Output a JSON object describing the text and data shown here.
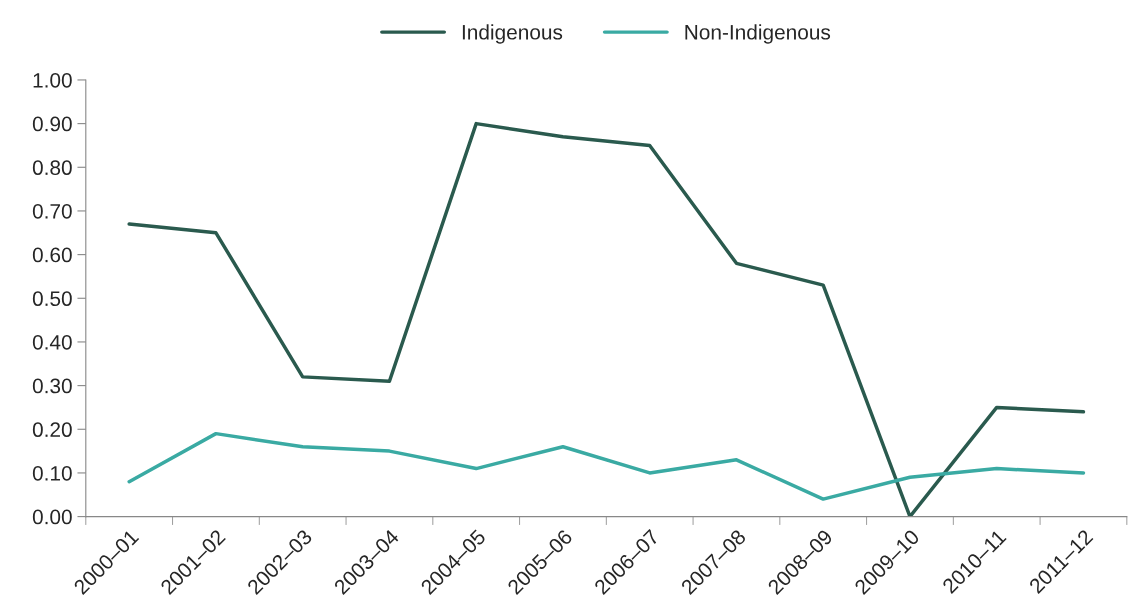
{
  "chart_data": {
    "type": "line",
    "categories": [
      "2000–01",
      "2001–02",
      "2002–03",
      "2003–04",
      "2004–05",
      "2005–06",
      "2006–07",
      "2007–08",
      "2008–09",
      "2009–10",
      "2010–11",
      "2011–12"
    ],
    "series": [
      {
        "name": "Indigenous",
        "color": "#2a5a4e",
        "values": [
          0.67,
          0.65,
          0.32,
          0.31,
          0.9,
          0.87,
          0.85,
          0.58,
          0.53,
          0.0,
          0.25,
          0.24
        ]
      },
      {
        "name": "Non-Indigenous",
        "color": "#3aaaa3",
        "values": [
          0.08,
          0.19,
          0.16,
          0.15,
          0.11,
          0.16,
          0.1,
          0.13,
          0.04,
          0.09,
          0.11,
          0.1
        ]
      }
    ],
    "ylim": [
      0,
      1.0
    ],
    "yticks": [
      {
        "value": 0,
        "label": "0.00"
      },
      {
        "value": 0.1,
        "label": "0.10"
      },
      {
        "value": 0.2,
        "label": "0.20"
      },
      {
        "value": 0.3,
        "label": "0.30"
      },
      {
        "value": 0.4,
        "label": "0.40"
      },
      {
        "value": 0.5,
        "label": "0.50"
      },
      {
        "value": 0.6,
        "label": "0.60"
      },
      {
        "value": 0.7,
        "label": "0.70"
      },
      {
        "value": 0.8,
        "label": "0.80"
      },
      {
        "value": 0.9,
        "label": "0.90"
      },
      {
        "value": 1.0,
        "label": "1.00"
      }
    ],
    "grid": false,
    "legend": "top",
    "marker": "none",
    "line_style": "solid"
  }
}
